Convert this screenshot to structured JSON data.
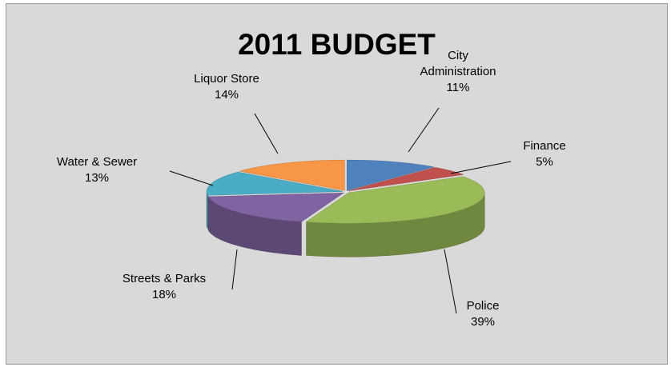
{
  "chart_data": {
    "type": "pie",
    "title": "2011 BUDGET",
    "slices": [
      {
        "name": "City Administration",
        "value": 11,
        "label_lines": [
          "City",
          "Administration",
          "11%"
        ],
        "color": "#4f81bd"
      },
      {
        "name": "Finance",
        "value": 5,
        "label_lines": [
          "Finance",
          "5%"
        ],
        "color": "#c0504d"
      },
      {
        "name": "Police",
        "value": 39,
        "label_lines": [
          "Police",
          "39%"
        ],
        "color": "#9bbb59"
      },
      {
        "name": "Streets & Parks",
        "value": 18,
        "label_lines": [
          "Streets & Parks",
          "18%"
        ],
        "color": "#8064a2"
      },
      {
        "name": "Water & Sewer",
        "value": 13,
        "label_lines": [
          "Water & Sewer",
          "13%"
        ],
        "color": "#4bacc6"
      },
      {
        "name": "Liquor Store",
        "value": 14,
        "label_lines": [
          "Liquor Store",
          "14%"
        ],
        "color": "#f79646"
      }
    ],
    "style": "3d-exploded-pie",
    "legend": "none"
  }
}
